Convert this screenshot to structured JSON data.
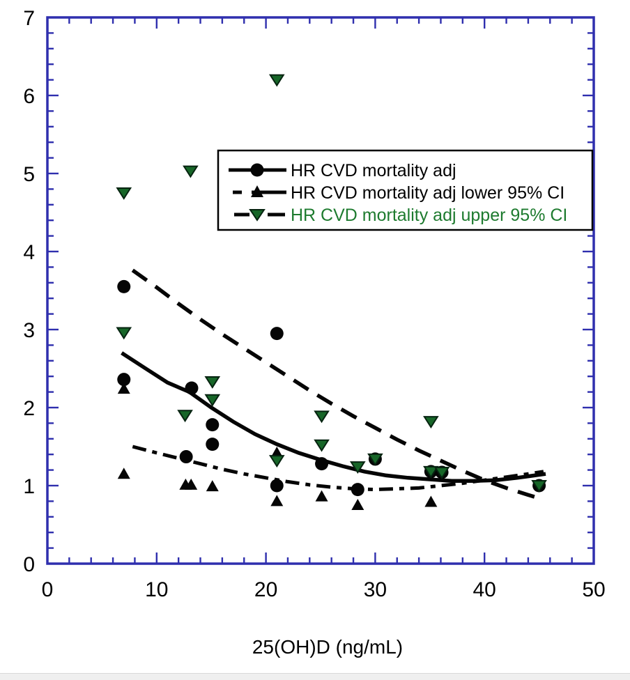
{
  "figure": {
    "background": "#ffffff",
    "axis_color": "#2f2fae",
    "text_color": "#000000",
    "green_color": "#1e7b2f",
    "marker_green_fill": "#176628",
    "marker_green_edge": "#062310",
    "marker_black": "#050505"
  },
  "legend": {
    "items": [
      {
        "label": "HR CVD mortality adj",
        "text_color": "#000000",
        "marker": "circle",
        "line": "solid"
      },
      {
        "label": "HR CVD mortality adj lower 95% CI",
        "text_color": "#000000",
        "marker": "triangle-up",
        "line": "dash-dot"
      },
      {
        "label": "HR CVD mortality adj upper 95% CI",
        "text_color": "#1e7b2f",
        "marker": "triangle-down",
        "line": "dash"
      }
    ]
  },
  "chart_data": {
    "type": "scatter",
    "title": "",
    "xlabel": "25(OH)D (ng/mL)",
    "ylabel": "",
    "xlim": [
      0,
      50
    ],
    "ylim": [
      0,
      7
    ],
    "x_ticks": [
      0,
      10,
      20,
      30,
      40,
      50
    ],
    "y_ticks": [
      0,
      1,
      2,
      3,
      4,
      5,
      6,
      7
    ],
    "x_minor_step": 2,
    "y_minor_step": 0.2,
    "grid": "off",
    "legend_position": "upper-right-inside",
    "series": [
      {
        "name": "HR CVD mortality adj",
        "marker": "circle",
        "points": [
          [
            7,
            3.55
          ],
          [
            7,
            2.36
          ],
          [
            13.2,
            2.25
          ],
          [
            12.7,
            1.37
          ],
          [
            15.1,
            1.78
          ],
          [
            15.1,
            1.53
          ],
          [
            21,
            2.95
          ],
          [
            21,
            1.0
          ],
          [
            25.1,
            1.28
          ],
          [
            28.4,
            0.95
          ],
          [
            30,
            1.34
          ],
          [
            35.1,
            1.18
          ],
          [
            36.1,
            1.17
          ],
          [
            45,
            1.0
          ]
        ]
      },
      {
        "name": "HR CVD mortality adj lower 95% CI",
        "marker": "triangle-up",
        "points": [
          [
            7,
            2.24
          ],
          [
            7,
            1.15
          ],
          [
            12.65,
            1.01
          ],
          [
            13.15,
            1.01
          ],
          [
            15.1,
            0.99
          ],
          [
            21,
            1.42
          ],
          [
            21,
            0.8
          ],
          [
            25.1,
            0.86
          ],
          [
            28.4,
            0.75
          ],
          [
            35.1,
            0.79
          ]
        ]
      },
      {
        "name": "HR CVD mortality adj upper 95% CI",
        "marker": "triangle-down",
        "points": [
          [
            7,
            4.75
          ],
          [
            7,
            2.96
          ],
          [
            13.1,
            5.03
          ],
          [
            12.6,
            1.9
          ],
          [
            15.1,
            2.33
          ],
          [
            15.1,
            2.1
          ],
          [
            21,
            6.2
          ],
          [
            21,
            1.32
          ],
          [
            25.1,
            1.89
          ],
          [
            25.1,
            1.52
          ],
          [
            28.4,
            1.24
          ],
          [
            30,
            1.34
          ],
          [
            35.1,
            1.82
          ],
          [
            35.1,
            1.18
          ],
          [
            36.1,
            1.17
          ],
          [
            45,
            1.0
          ]
        ]
      }
    ],
    "curves": [
      {
        "name": "HR fit (solid)",
        "style": "solid",
        "points": [
          [
            6.8,
            2.7
          ],
          [
            9,
            2.5
          ],
          [
            11,
            2.32
          ],
          [
            13,
            2.2
          ],
          [
            15,
            2.0
          ],
          [
            17,
            1.82
          ],
          [
            19,
            1.66
          ],
          [
            21,
            1.53
          ],
          [
            23,
            1.42
          ],
          [
            25,
            1.33
          ],
          [
            27,
            1.25
          ],
          [
            29,
            1.18
          ],
          [
            31,
            1.13
          ],
          [
            33,
            1.1
          ],
          [
            35,
            1.08
          ],
          [
            37,
            1.06
          ],
          [
            39,
            1.06
          ],
          [
            41,
            1.07
          ],
          [
            43,
            1.1
          ],
          [
            45.6,
            1.15
          ]
        ]
      },
      {
        "name": "lower 95% CI fit (dash-dot)",
        "style": "dash-dot",
        "points": [
          [
            7.8,
            1.5
          ],
          [
            10,
            1.42
          ],
          [
            12,
            1.35
          ],
          [
            14,
            1.28
          ],
          [
            16,
            1.21
          ],
          [
            18,
            1.15
          ],
          [
            20,
            1.1
          ],
          [
            22,
            1.05
          ],
          [
            24,
            1.01
          ],
          [
            26,
            0.98
          ],
          [
            28,
            0.96
          ],
          [
            30,
            0.95
          ],
          [
            32,
            0.96
          ],
          [
            34,
            0.97
          ],
          [
            36,
            1.0
          ],
          [
            38,
            1.03
          ],
          [
            40,
            1.07
          ],
          [
            42,
            1.11
          ],
          [
            44,
            1.15
          ],
          [
            45.4,
            1.18
          ]
        ]
      },
      {
        "name": "upper 95% CI fit (long-dash)",
        "style": "long-dash",
        "points": [
          [
            7.8,
            3.76
          ],
          [
            10,
            3.54
          ],
          [
            12,
            3.33
          ],
          [
            14,
            3.13
          ],
          [
            16,
            2.94
          ],
          [
            18,
            2.76
          ],
          [
            20,
            2.58
          ],
          [
            22,
            2.4
          ],
          [
            24,
            2.22
          ],
          [
            26,
            2.05
          ],
          [
            28,
            1.89
          ],
          [
            30,
            1.74
          ],
          [
            32,
            1.59
          ],
          [
            34,
            1.45
          ],
          [
            36,
            1.32
          ],
          [
            38,
            1.19
          ],
          [
            40,
            1.07
          ],
          [
            42,
            0.97
          ],
          [
            44,
            0.88
          ],
          [
            45.2,
            0.83
          ]
        ]
      }
    ]
  }
}
